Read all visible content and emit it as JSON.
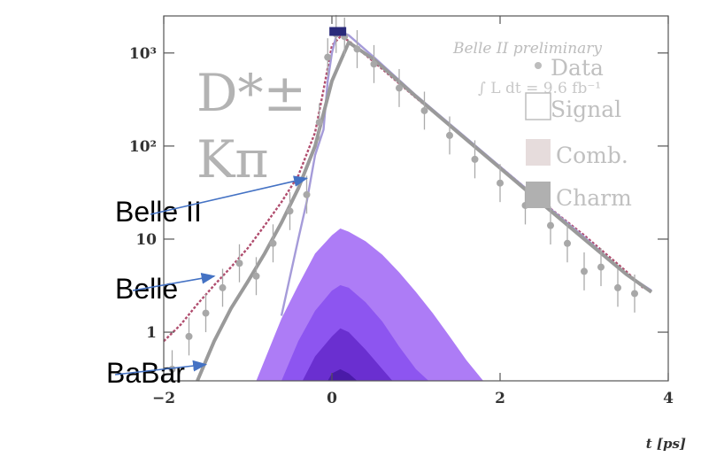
{
  "chart_data": {
    "type": "scatter",
    "xlabel": "t [ps]",
    "xlim": [
      -2,
      4
    ],
    "ylim": [
      0.3,
      2500
    ],
    "yscale": "log",
    "x_ticks": [
      {
        "value": -2,
        "label": "−2"
      },
      {
        "value": 0,
        "label": "0"
      },
      {
        "value": 2,
        "label": "2"
      },
      {
        "value": 4,
        "label": "4"
      }
    ],
    "y_ticks": [
      {
        "value": 1,
        "label": "1"
      },
      {
        "value": 10,
        "label": "10"
      },
      {
        "value": 100,
        "label": "10²"
      },
      {
        "value": 1000,
        "label": "10³"
      }
    ],
    "decay_label": {
      "line1": "D*±",
      "line2": "Kπ"
    },
    "experiment": "Belle II preliminary",
    "luminosity": "∫ L dt = 9.6 fb⁻¹",
    "legend_position": "top-right",
    "legend": [
      {
        "label": "Data",
        "marker": "point"
      },
      {
        "label": "Signal",
        "marker": "open-box"
      },
      {
        "label": "Comb.",
        "marker": "light-box"
      },
      {
        "label": "Charm",
        "marker": "dark-box"
      }
    ],
    "annotations": [
      {
        "text": "Belle II",
        "x": -0.3,
        "y": 45
      },
      {
        "text": "Belle",
        "x": -1.4,
        "y": 4
      },
      {
        "text": "BaBar",
        "x": -1.5,
        "y": 0.45
      }
    ],
    "colors": {
      "belle": "#b04d6e",
      "belle2": "#a59bd9",
      "babar": "#9a9a9a",
      "fill_light": "#ad7cf6",
      "fill_mid": "#8d55f0",
      "fill_dark": "#6a2fd0",
      "fill_core": "#4a1aa8",
      "arrow": "#4472c4"
    },
    "series": [
      {
        "name": "Belle",
        "style": "dotted-line",
        "x": [
          -2.0,
          -1.8,
          -1.6,
          -1.4,
          -1.2,
          -1.0,
          -0.8,
          -0.6,
          -0.4,
          -0.2,
          -0.1,
          0.0,
          0.1,
          0.2,
          0.5,
          1.0,
          1.5,
          2.0,
          2.5,
          3.0,
          3.5,
          3.7
        ],
        "y": [
          0.8,
          1.2,
          2.0,
          3.2,
          5,
          8,
          14,
          25,
          48,
          140,
          400,
          1200,
          1500,
          1350,
          800,
          330,
          140,
          60,
          25,
          11,
          4.5,
          3
        ]
      },
      {
        "name": "Belle II",
        "style": "line",
        "x": [
          -0.6,
          -0.4,
          -0.3,
          -0.2,
          -0.1,
          -0.05,
          0.0,
          0.05,
          0.1,
          0.2,
          0.5,
          1.0,
          1.5,
          2.0,
          2.5,
          3.0,
          3.5,
          3.8
        ],
        "y": [
          1.5,
          10,
          25,
          80,
          150,
          500,
          1000,
          1500,
          1700,
          1550,
          900,
          350,
          145,
          60,
          25,
          10.5,
          4.2,
          2.8
        ]
      },
      {
        "name": "BaBar",
        "style": "line",
        "x": [
          -1.6,
          -1.4,
          -1.2,
          -1.0,
          -0.8,
          -0.6,
          -0.4,
          -0.2,
          0.0,
          0.2,
          0.5,
          1.0,
          1.5,
          2.0,
          2.5,
          3.0,
          3.5,
          3.8
        ],
        "y": [
          0.3,
          0.8,
          1.8,
          3.5,
          7,
          15,
          35,
          100,
          500,
          1300,
          850,
          340,
          140,
          58,
          24,
          10,
          4.2,
          2.7
        ]
      },
      {
        "name": "Signal fill",
        "style": "fill",
        "x": [
          -0.9,
          -0.6,
          -0.4,
          -0.2,
          0.0,
          0.1,
          0.2,
          0.4,
          0.6,
          0.8,
          1.0,
          1.2,
          1.4,
          1.6,
          1.8
        ],
        "y": [
          0.3,
          1.4,
          3.2,
          7,
          11,
          13,
          12,
          9.5,
          6.8,
          4.4,
          2.7,
          1.6,
          0.9,
          0.5,
          0.3
        ]
      },
      {
        "name": "Comb. fill",
        "style": "fill",
        "x": [
          -0.6,
          -0.4,
          -0.2,
          0.0,
          0.1,
          0.2,
          0.4,
          0.6,
          0.8,
          1.0,
          1.15
        ],
        "y": [
          0.3,
          0.8,
          1.7,
          2.8,
          3.2,
          3.0,
          2.1,
          1.3,
          0.7,
          0.4,
          0.3
        ]
      },
      {
        "name": "Charm fill",
        "style": "fill",
        "x": [
          -0.35,
          -0.2,
          0.0,
          0.1,
          0.2,
          0.4,
          0.6,
          0.72
        ],
        "y": [
          0.3,
          0.55,
          0.9,
          1.1,
          1.0,
          0.65,
          0.4,
          0.3
        ]
      },
      {
        "name": "Core fill",
        "style": "fill",
        "x": [
          -0.05,
          0.0,
          0.1,
          0.2,
          0.3
        ],
        "y": [
          0.3,
          0.36,
          0.4,
          0.36,
          0.3
        ]
      },
      {
        "name": "Data",
        "style": "points",
        "x": [
          -1.9,
          -1.7,
          -1.5,
          -1.3,
          -1.1,
          -0.9,
          -0.7,
          -0.5,
          -0.3,
          -0.15,
          -0.05,
          0.05,
          0.15,
          0.3,
          0.5,
          0.8,
          1.1,
          1.4,
          1.7,
          2.0,
          2.3,
          2.6,
          2.8,
          3.0,
          3.2,
          3.4,
          3.6
        ],
        "y": [
          0.4,
          0.9,
          1.6,
          3.0,
          5.5,
          4.0,
          9,
          20,
          30,
          180,
          900,
          1600,
          1500,
          1100,
          760,
          420,
          240,
          130,
          72,
          40,
          23,
          14,
          9,
          4.5,
          5,
          3,
          2.6
        ]
      }
    ]
  }
}
